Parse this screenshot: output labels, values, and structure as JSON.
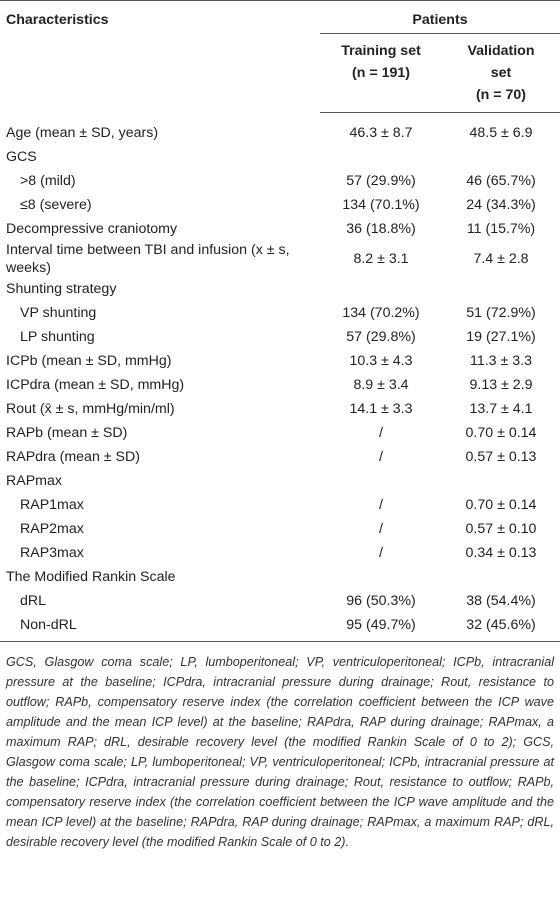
{
  "table": {
    "header": {
      "characteristics": "Characteristics",
      "patients": "Patients",
      "columns": [
        {
          "name": "Training set",
          "n": "(n = 191)"
        },
        {
          "name": "Validation set",
          "n": "(n = 70)"
        }
      ]
    },
    "rows": [
      {
        "label": "Age (mean ± SD, years)",
        "values": [
          "46.3 ± 8.7",
          "48.5 ± 6.9"
        ]
      },
      {
        "label": "GCS"
      },
      {
        "label": ">8 (mild)",
        "indent": true,
        "values": [
          "57 (29.9%)",
          "46 (65.7%)"
        ]
      },
      {
        "label": "≤8 (severe)",
        "indent": true,
        "values": [
          "134 (70.1%)",
          "24 (34.3%)"
        ]
      },
      {
        "label": "Decompressive craniotomy",
        "values": [
          "36 (18.8%)",
          "11 (15.7%)"
        ]
      },
      {
        "label": "Interval time between TBI and infusion (x ± s, weeks)",
        "values": [
          "8.2 ± 3.1",
          "7.4 ± 2.8"
        ]
      },
      {
        "label": "Shunting strategy"
      },
      {
        "label": "VP shunting",
        "indent": true,
        "values": [
          "134 (70.2%)",
          "51 (72.9%)"
        ]
      },
      {
        "label": "LP shunting",
        "indent": true,
        "values": [
          "57 (29.8%)",
          "19 (27.1%)"
        ]
      },
      {
        "label": "ICPb (mean ± SD, mmHg)",
        "values": [
          "10.3 ± 4.3",
          "11.3 ± 3.3"
        ]
      },
      {
        "label": "ICPdra (mean ± SD, mmHg)",
        "values": [
          "8.9 ± 3.4",
          "9.13 ± 2.9"
        ]
      },
      {
        "label": "Rout (x̄ ± s, mmHg/min/ml)",
        "values": [
          "14.1 ± 3.3",
          "13.7 ± 4.1"
        ]
      },
      {
        "label": "RAPb (mean ± SD)",
        "values": [
          "/",
          "0.70 ± 0.14"
        ]
      },
      {
        "label": "RAPdra (mean ± SD)",
        "values": [
          "/",
          "0.57 ± 0.13"
        ]
      },
      {
        "label": "RAPmax"
      },
      {
        "label": "RAP1max",
        "indent": true,
        "values": [
          "/",
          "0.70 ± 0.14"
        ]
      },
      {
        "label": "RAP2max",
        "indent": true,
        "values": [
          "/",
          "0.57 ± 0.10"
        ]
      },
      {
        "label": "RAP3max",
        "indent": true,
        "values": [
          "/",
          "0.34 ± 0.13"
        ]
      },
      {
        "label": "The Modified Rankin Scale"
      },
      {
        "label": "dRL",
        "indent": true,
        "values": [
          "96 (50.3%)",
          "38 (54.4%)"
        ]
      },
      {
        "label": "Non-dRL",
        "indent": true,
        "values": [
          "95 (49.7%)",
          "32 (45.6%)"
        ]
      }
    ],
    "footnote": "GCS, Glasgow coma scale; LP, lumboperitoneal; VP, ventriculoperitoneal; ICPb, intracranial pressure at the baseline; ICPdra, intracranial pressure during drainage; Rout, resistance to outflow; RAPb, compensatory reserve index (the correlation coefficient between the ICP wave amplitude and the mean ICP level) at the baseline; RAPdra, RAP during drainage; RAPmax, a maximum RAP; dRL, desirable recovery level (the modified Rankin Scale of 0 to 2); GCS, Glasgow coma scale; LP, lumboperitoneal; VP, ventriculoperitoneal; ICPb, intracranial pressure at the baseline; ICPdra, intracranial pressure during drainage; Rout, resistance to outflow; RAPb, compensatory reserve index (the correlation coefficient between the ICP wave amplitude and the mean ICP level) at the baseline; RAPdra, RAP during drainage; RAPmax, a maximum RAP; dRL, desirable recovery level (the modified Rankin Scale of 0 to 2)."
  }
}
